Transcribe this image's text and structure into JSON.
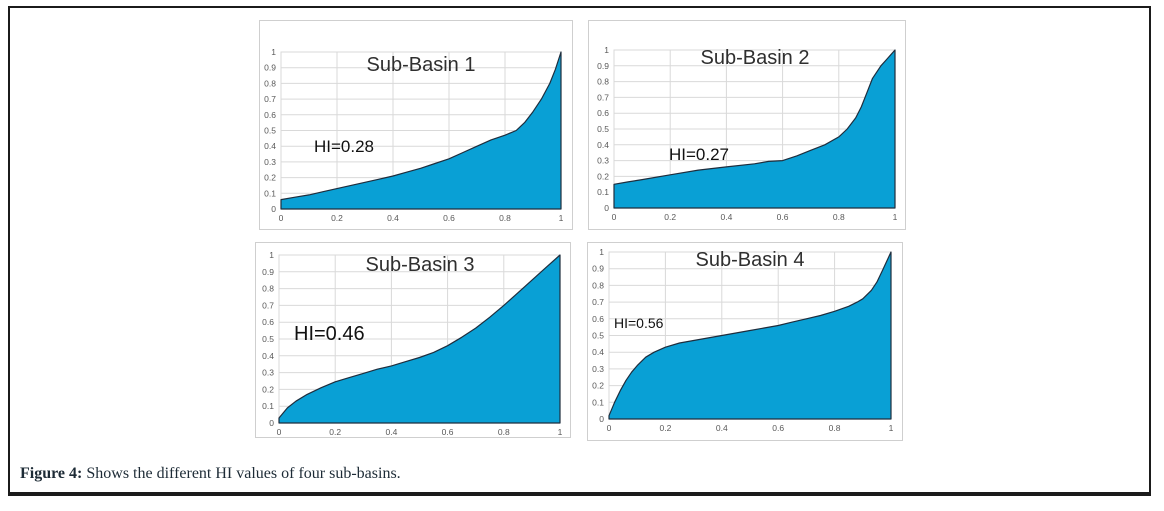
{
  "figure": {
    "caption_label": "Figure 4:",
    "caption_text": "Shows the different HI values of four sub-basins."
  },
  "colors": {
    "area_fill": "#09a0d5",
    "area_stroke": "#1e2d3d",
    "grid_line": "#d9d9d9",
    "plot_border": "#d9d9d9",
    "tick_text": "#595959",
    "frame_border": "#1b1b1b"
  },
  "chart_data": [
    {
      "type": "area",
      "title": "Sub-Basin 1",
      "annotation": "HI=0.28",
      "xlabel": "",
      "ylabel": "",
      "xlim": [
        0,
        1
      ],
      "ylim": [
        0,
        1
      ],
      "grid": true,
      "x_ticks": [
        "0",
        "0.2",
        "0.4",
        "0.6",
        "0.8",
        "1"
      ],
      "y_ticks": [
        "0",
        "0.1",
        "0.2",
        "0.3",
        "0.4",
        "0.5",
        "0.6",
        "0.7",
        "0.8",
        "0.9",
        "1"
      ],
      "points": [
        [
          0,
          0.06
        ],
        [
          0.05,
          0.075
        ],
        [
          0.1,
          0.09
        ],
        [
          0.15,
          0.11
        ],
        [
          0.2,
          0.13
        ],
        [
          0.25,
          0.15
        ],
        [
          0.3,
          0.17
        ],
        [
          0.35,
          0.19
        ],
        [
          0.4,
          0.21
        ],
        [
          0.45,
          0.235
        ],
        [
          0.5,
          0.26
        ],
        [
          0.55,
          0.29
        ],
        [
          0.6,
          0.32
        ],
        [
          0.65,
          0.36
        ],
        [
          0.7,
          0.4
        ],
        [
          0.75,
          0.44
        ],
        [
          0.8,
          0.47
        ],
        [
          0.84,
          0.5
        ],
        [
          0.87,
          0.55
        ],
        [
          0.9,
          0.62
        ],
        [
          0.93,
          0.7
        ],
        [
          0.96,
          0.8
        ],
        [
          0.98,
          0.89
        ],
        [
          1,
          1
        ]
      ]
    },
    {
      "type": "area",
      "title": "Sub-Basin 2",
      "annotation": "HI=0.27",
      "xlabel": "",
      "ylabel": "",
      "xlim": [
        0,
        1
      ],
      "ylim": [
        0,
        1
      ],
      "grid": true,
      "x_ticks": [
        "0",
        "0.2",
        "0.4",
        "0.6",
        "0.8",
        "1"
      ],
      "y_ticks": [
        "0",
        "0.1",
        "0.2",
        "0.3",
        "0.4",
        "0.5",
        "0.6",
        "0.7",
        "0.8",
        "0.9",
        "1"
      ],
      "points": [
        [
          0,
          0.15
        ],
        [
          0.05,
          0.165
        ],
        [
          0.1,
          0.18
        ],
        [
          0.2,
          0.21
        ],
        [
          0.3,
          0.24
        ],
        [
          0.4,
          0.26
        ],
        [
          0.5,
          0.28
        ],
        [
          0.55,
          0.295
        ],
        [
          0.6,
          0.3
        ],
        [
          0.65,
          0.33
        ],
        [
          0.7,
          0.365
        ],
        [
          0.75,
          0.4
        ],
        [
          0.8,
          0.45
        ],
        [
          0.83,
          0.5
        ],
        [
          0.86,
          0.57
        ],
        [
          0.88,
          0.64
        ],
        [
          0.9,
          0.73
        ],
        [
          0.92,
          0.82
        ],
        [
          0.95,
          0.9
        ],
        [
          0.97,
          0.94
        ],
        [
          1,
          1
        ]
      ]
    },
    {
      "type": "area",
      "title": "Sub-Basin 3",
      "annotation": "HI=0.46",
      "xlabel": "",
      "ylabel": "",
      "xlim": [
        0,
        1
      ],
      "ylim": [
        0,
        1
      ],
      "grid": true,
      "x_ticks": [
        "0",
        "0.2",
        "0.4",
        "0.6",
        "0.8",
        "1"
      ],
      "y_ticks": [
        "0",
        "0.1",
        "0.2",
        "0.3",
        "0.4",
        "0.5",
        "0.6",
        "0.7",
        "0.8",
        "0.9",
        "1"
      ],
      "points": [
        [
          0,
          0.03
        ],
        [
          0.03,
          0.09
        ],
        [
          0.06,
          0.13
        ],
        [
          0.1,
          0.17
        ],
        [
          0.15,
          0.21
        ],
        [
          0.2,
          0.245
        ],
        [
          0.25,
          0.27
        ],
        [
          0.3,
          0.295
        ],
        [
          0.35,
          0.32
        ],
        [
          0.4,
          0.34
        ],
        [
          0.45,
          0.365
        ],
        [
          0.5,
          0.39
        ],
        [
          0.55,
          0.42
        ],
        [
          0.6,
          0.46
        ],
        [
          0.65,
          0.51
        ],
        [
          0.7,
          0.565
        ],
        [
          0.75,
          0.63
        ],
        [
          0.8,
          0.7
        ],
        [
          0.85,
          0.775
        ],
        [
          0.9,
          0.85
        ],
        [
          0.95,
          0.925
        ],
        [
          1,
          1
        ]
      ]
    },
    {
      "type": "area",
      "title": "Sub-Basin 4",
      "annotation": "HI=0.56",
      "xlabel": "",
      "ylabel": "",
      "xlim": [
        0,
        1
      ],
      "ylim": [
        0,
        1
      ],
      "grid": true,
      "x_ticks": [
        "0",
        "0.2",
        "0.4",
        "0.6",
        "0.8",
        "1"
      ],
      "y_ticks": [
        "0",
        "0.1",
        "0.2",
        "0.3",
        "0.4",
        "0.5",
        "0.6",
        "0.7",
        "0.8",
        "0.9",
        "1"
      ],
      "points": [
        [
          0,
          0.02
        ],
        [
          0.02,
          0.1
        ],
        [
          0.04,
          0.17
        ],
        [
          0.06,
          0.23
        ],
        [
          0.08,
          0.28
        ],
        [
          0.1,
          0.32
        ],
        [
          0.13,
          0.37
        ],
        [
          0.16,
          0.4
        ],
        [
          0.2,
          0.43
        ],
        [
          0.25,
          0.455
        ],
        [
          0.3,
          0.47
        ],
        [
          0.35,
          0.485
        ],
        [
          0.4,
          0.5
        ],
        [
          0.45,
          0.515
        ],
        [
          0.5,
          0.53
        ],
        [
          0.55,
          0.545
        ],
        [
          0.6,
          0.56
        ],
        [
          0.65,
          0.58
        ],
        [
          0.7,
          0.6
        ],
        [
          0.75,
          0.62
        ],
        [
          0.8,
          0.645
        ],
        [
          0.85,
          0.675
        ],
        [
          0.88,
          0.7
        ],
        [
          0.9,
          0.72
        ],
        [
          0.93,
          0.77
        ],
        [
          0.95,
          0.82
        ],
        [
          0.97,
          0.89
        ],
        [
          1,
          1
        ]
      ]
    }
  ]
}
